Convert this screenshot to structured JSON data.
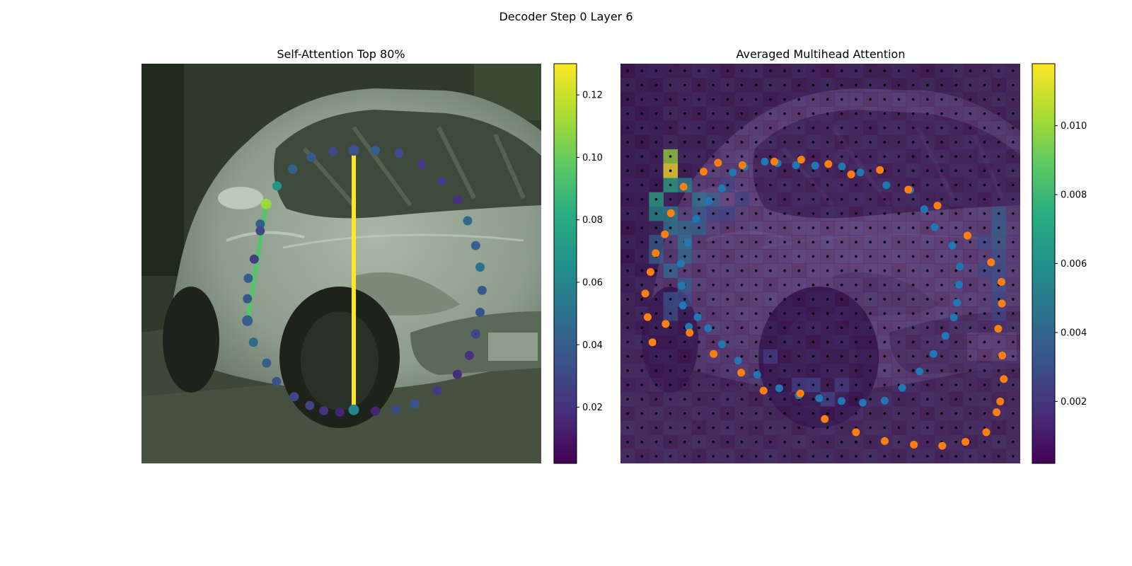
{
  "suptitle": "Decoder Step 0 Layer 6",
  "chart_data": [
    {
      "type": "scatter",
      "title": "Self-Attention Top 80%",
      "background": "photo of a silver car (hatchback) driving on a road",
      "colormap": "viridis",
      "colorbar": {
        "range": [
          0.002,
          0.13
        ],
        "ticks": [
          "0.02",
          "0.04",
          "0.06",
          "0.08",
          "0.10",
          "0.12"
        ]
      },
      "points": {
        "x": [
          0.531,
          0.585,
          0.637,
          0.684,
          0.74,
          0.79,
          0.82,
          0.836,
          0.847,
          0.852,
          0.847,
          0.836,
          0.816,
          0.79,
          0.752,
          0.701,
          0.644,
          0.585,
          0.531,
          0.479,
          0.425,
          0.378,
          0.339,
          0.312,
          0.297,
          0.297,
          0.282,
          0.267,
          0.265,
          0.265,
          0.28,
          0.313,
          0.338,
          0.382,
          0.421,
          0.456,
          0.496
        ],
        "y": [
          0.866,
          0.869,
          0.866,
          0.851,
          0.818,
          0.777,
          0.73,
          0.676,
          0.622,
          0.567,
          0.509,
          0.455,
          0.393,
          0.341,
          0.294,
          0.252,
          0.224,
          0.217,
          0.217,
          0.22,
          0.234,
          0.264,
          0.306,
          0.351,
          0.401,
          0.418,
          0.489,
          0.537,
          0.588,
          0.643,
          0.697,
          0.749,
          0.795,
          0.833,
          0.855,
          0.868,
          0.872
        ],
        "values": [
          0.06,
          0.015,
          0.03,
          0.035,
          0.025,
          0.018,
          0.02,
          0.028,
          0.035,
          0.038,
          0.05,
          0.042,
          0.045,
          0.02,
          0.025,
          0.022,
          0.032,
          0.04,
          0.035,
          0.03,
          0.038,
          0.042,
          0.068,
          0.11,
          0.04,
          0.03,
          0.025,
          0.038,
          0.035,
          0.04,
          0.045,
          0.04,
          0.035,
          0.03,
          0.028,
          0.02,
          0.015
        ]
      },
      "links": [
        {
          "from": 23,
          "to": 29,
          "value": 0.095
        },
        {
          "from": 0,
          "to": 18,
          "value": 0.13
        }
      ]
    },
    {
      "type": "heatmap",
      "title": "Averaged Multihead Attention",
      "background": "same car photo under a purple attention heatmap with a regular grid of black reference dots",
      "colormap": "viridis",
      "colorbar": {
        "range": [
          0.0002,
          0.0118
        ],
        "ticks": [
          "0.002",
          "0.004",
          "0.006",
          "0.008",
          "0.010"
        ]
      },
      "series": [
        {
          "name": "",
          "color": "#1f77b4",
          "x": [
            0.171,
            0.156,
            0.153,
            0.151,
            0.168,
            0.189,
            0.221,
            0.254,
            0.281,
            0.311,
            0.361,
            0.393,
            0.439,
            0.487,
            0.554,
            0.6,
            0.665,
            0.725,
            0.76,
            0.786,
            0.83,
            0.849,
            0.847,
            0.842,
            0.834,
            0.813,
            0.783,
            0.748,
            0.705,
            0.661,
            0.606,
            0.553,
            0.497,
            0.446,
            0.397,
            0.342,
            0.294,
            0.254,
            0.219,
            0.193
          ],
          "y": [
            0.658,
            0.605,
            0.555,
            0.5,
            0.448,
            0.389,
            0.344,
            0.312,
            0.272,
            0.258,
            0.245,
            0.249,
            0.254,
            0.255,
            0.257,
            0.272,
            0.304,
            0.316,
            0.364,
            0.409,
            0.455,
            0.508,
            0.553,
            0.598,
            0.635,
            0.681,
            0.726,
            0.77,
            0.811,
            0.843,
            0.848,
            0.844,
            0.837,
            0.83,
            0.812,
            0.778,
            0.743,
            0.702,
            0.662,
            0.634
          ]
        },
        {
          "name": "",
          "color": "#ff7f0e",
          "x": [
            0.08,
            0.068,
            0.062,
            0.075,
            0.088,
            0.111,
            0.126,
            0.158,
            0.208,
            0.244,
            0.305,
            0.385,
            0.452,
            0.52,
            0.577,
            0.649,
            0.72,
            0.793,
            0.868,
            0.927,
            0.953,
            0.954,
            0.945,
            0.955,
            0.959,
            0.95,
            0.941,
            0.915,
            0.863,
            0.805,
            0.734,
            0.661,
            0.589,
            0.511,
            0.45,
            0.358,
            0.302,
            0.233,
            0.173,
            0.113
          ],
          "y": [
            0.697,
            0.634,
            0.575,
            0.521,
            0.474,
            0.427,
            0.374,
            0.308,
            0.27,
            0.248,
            0.254,
            0.245,
            0.24,
            0.251,
            0.277,
            0.266,
            0.315,
            0.355,
            0.43,
            0.497,
            0.546,
            0.6,
            0.663,
            0.73,
            0.789,
            0.845,
            0.872,
            0.922,
            0.946,
            0.956,
            0.953,
            0.944,
            0.922,
            0.889,
            0.825,
            0.818,
            0.773,
            0.726,
            0.673,
            0.651
          ]
        }
      ]
    }
  ]
}
